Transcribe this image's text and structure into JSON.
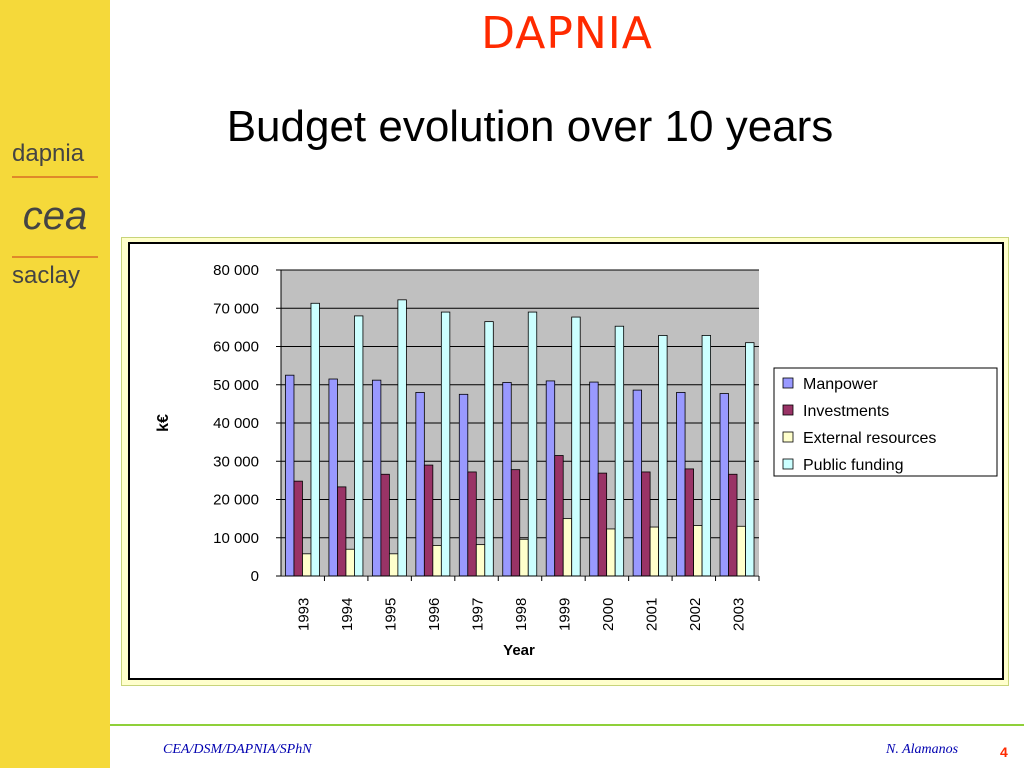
{
  "header": {
    "title": "DAPNIA"
  },
  "sidebar": {
    "logo_top": "dapnia",
    "logo_bottom": "saclay",
    "logo_mark": "cea"
  },
  "slide": {
    "title": "Budget evolution over 10 years"
  },
  "footer": {
    "left": "CEA/DSM/DAPNIA/SPhN",
    "right": "N. Alamanos",
    "page": "4"
  },
  "colors": {
    "accent_red": "#ff2a00",
    "sidebar_yellow": "#f5d93a",
    "plot_bg": "#c0c0c0",
    "manpower": "#9999ff",
    "investments": "#993366",
    "external": "#ffffcc",
    "public": "#ccffff"
  },
  "chart_data": {
    "type": "bar",
    "title": "",
    "xlabel": "Year",
    "ylabel": "k€",
    "ylim": [
      0,
      80000
    ],
    "yticks": [
      "0",
      "10 000",
      "20 000",
      "30 000",
      "40 000",
      "50 000",
      "60 000",
      "70 000",
      "80 000"
    ],
    "categories": [
      "1993",
      "1994",
      "1995",
      "1996",
      "1997",
      "1998",
      "1999",
      "2000",
      "2001",
      "2002",
      "2003"
    ],
    "series": [
      {
        "name": "Manpower",
        "color": "#9999ff",
        "values": [
          52500,
          51500,
          51200,
          48000,
          47500,
          50600,
          51000,
          50700,
          48600,
          48000,
          47700
        ]
      },
      {
        "name": "Investments",
        "color": "#993366",
        "values": [
          24800,
          23300,
          26600,
          29000,
          27200,
          27800,
          31500,
          26900,
          27200,
          28000,
          26600
        ]
      },
      {
        "name": "External resources",
        "color": "#ffffcc",
        "values": [
          5800,
          7000,
          5800,
          8000,
          8200,
          9600,
          15000,
          12300,
          12800,
          13200,
          13000
        ]
      },
      {
        "name": "Public funding",
        "color": "#ccffff",
        "values": [
          71300,
          68000,
          72200,
          69000,
          66500,
          69000,
          67700,
          65300,
          62900,
          62900,
          61000
        ]
      }
    ],
    "grid": true,
    "legend_position": "right"
  }
}
